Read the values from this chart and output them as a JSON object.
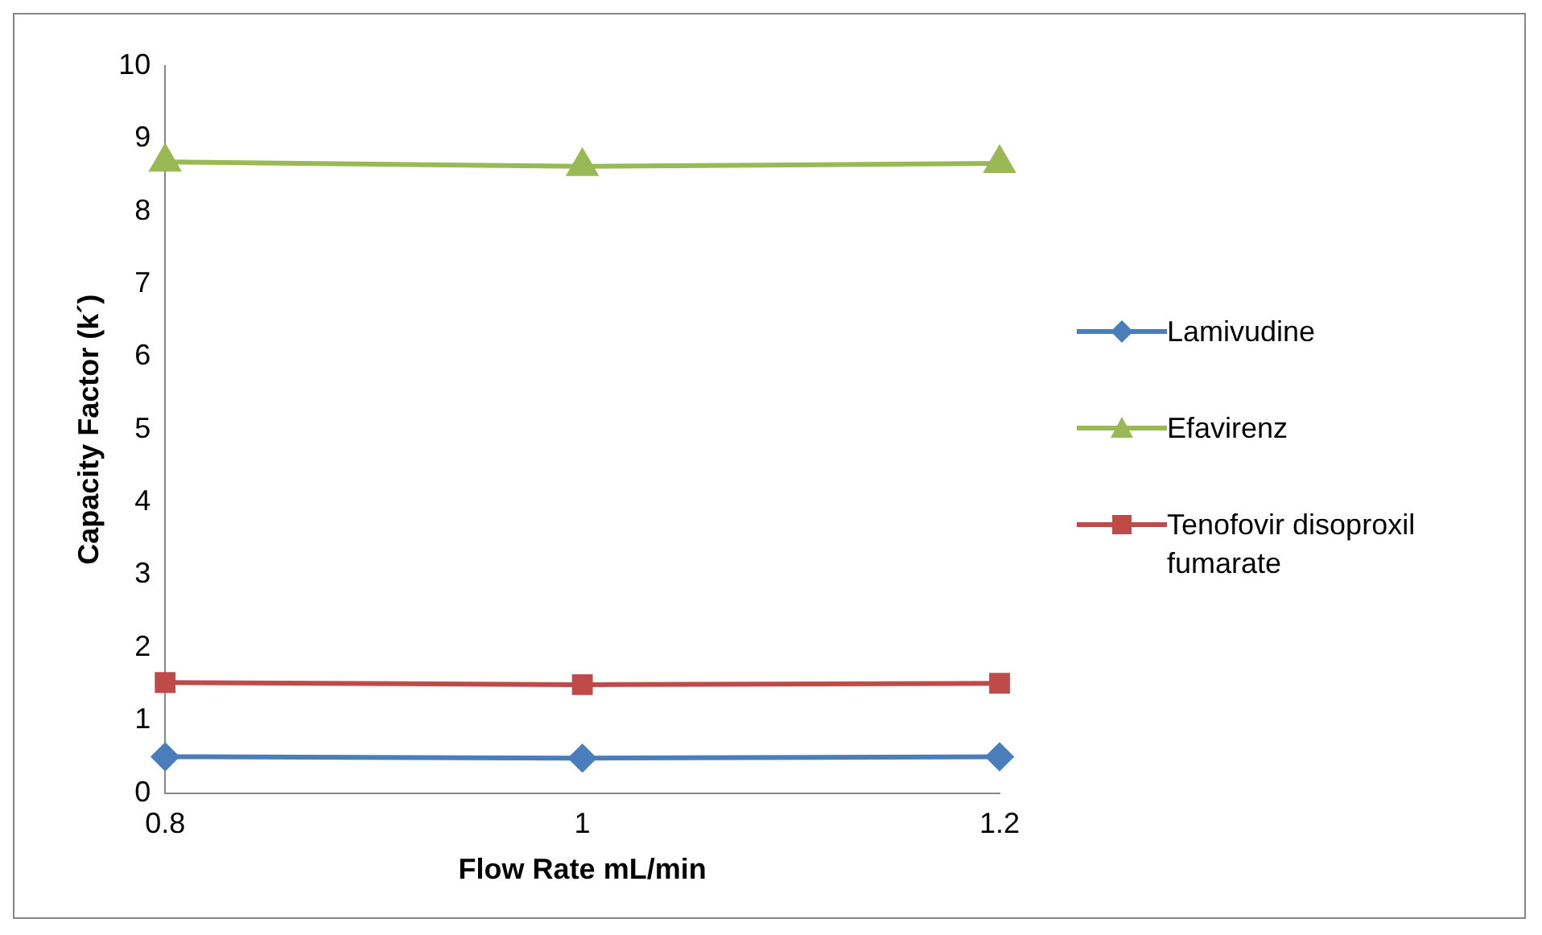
{
  "chart_data": {
    "type": "line",
    "xlabel": "Flow Rate mL/min",
    "ylabel": "Capacity Factor (k´)",
    "categories": [
      "0.8",
      "1",
      "1.2"
    ],
    "ylim": [
      0,
      10
    ],
    "yticks": [
      0,
      1,
      2,
      3,
      4,
      5,
      6,
      7,
      8,
      9,
      10
    ],
    "grid": false,
    "legend": "right",
    "line_style": "solid",
    "series": [
      {
        "name": "Lamivudine",
        "color": "#4a7ebb",
        "marker": "diamond",
        "values": [
          0.5,
          0.48,
          0.5
        ]
      },
      {
        "name": "Efavirenz",
        "color": "#98b954",
        "marker": "triangle",
        "values": [
          8.68,
          8.62,
          8.66
        ]
      },
      {
        "name": "Tenofovir disoproxil fumarate",
        "color": "#be4b48",
        "marker": "square",
        "values": [
          1.52,
          1.49,
          1.51
        ]
      }
    ]
  }
}
